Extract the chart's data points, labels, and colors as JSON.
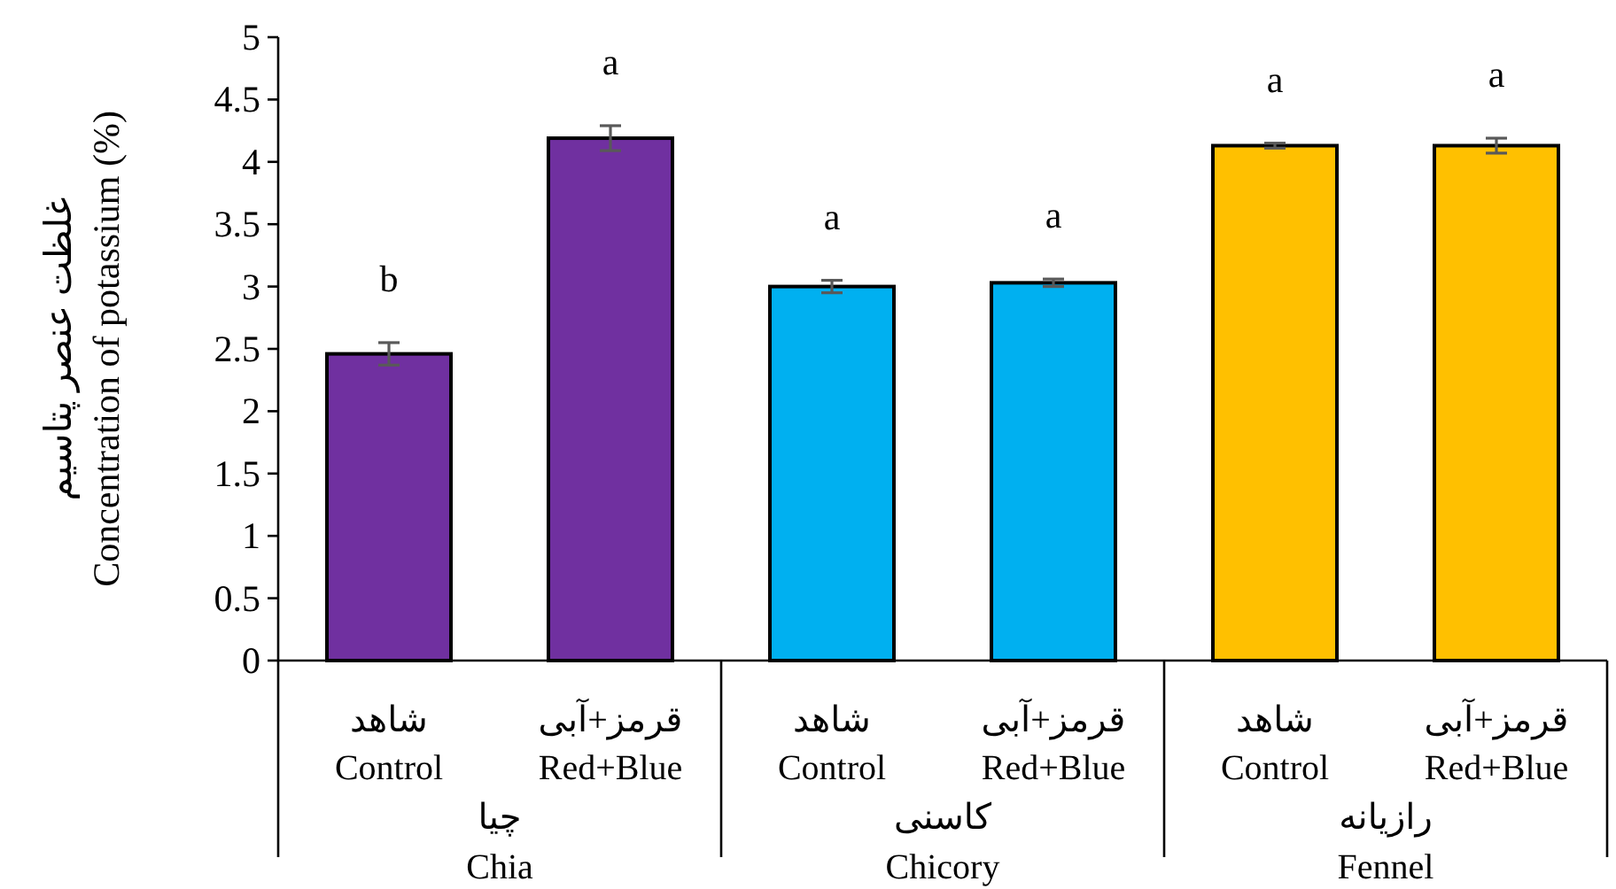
{
  "chart_data": {
    "type": "bar",
    "ylabel": "غلظت عنصر پتاسیم\nConcentration of potassium (%)",
    "categories": [
      "شاهد\nControl",
      "قرمز+آبی\nRed+Blue",
      "شاهد\nControl",
      "قرمز+آبی\nRed+Blue",
      "شاهد\nControl",
      "قرمز+آبی\nRed+Blue"
    ],
    "values": [
      2.46,
      4.19,
      3.0,
      3.03,
      4.13,
      4.13
    ],
    "colors": [
      "#7030a0",
      "#7030a0",
      "#00b0f0",
      "#00b0f0",
      "#ffc000",
      "#ffc000"
    ],
    "errors": [
      0.09,
      0.1,
      0.05,
      0.03,
      0.02,
      0.06
    ],
    "value_labels": [
      "b",
      "a",
      "a",
      "a",
      "a",
      "a"
    ],
    "ylim": [
      0,
      5
    ],
    "yticks": [
      0,
      0.5,
      1,
      1.5,
      2,
      2.5,
      3,
      3.5,
      4,
      4.5,
      5
    ],
    "annotations": [
      "چیا\nChia",
      "کاسنی\nChicory",
      "رازیانه\nFennel"
    ]
  }
}
